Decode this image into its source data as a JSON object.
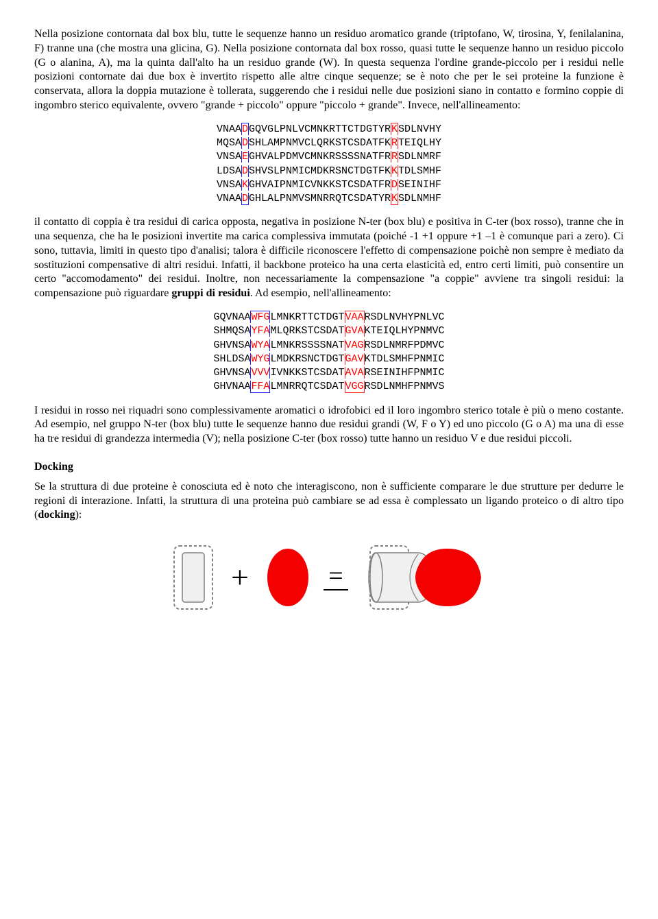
{
  "para1": "Nella posizione contornata dal box blu, tutte le sequenze hanno un residuo aromatico grande (triptofano, W, tirosina, Y, fenilalanina, F) tranne una (che mostra una glicina, G). Nella posizione contornata dal box rosso, quasi tutte le sequenze hanno un residuo piccolo (G o alanina, A), ma la quinta dall'alto ha un residuo grande (W). In questa sequenza l'ordine grande-piccolo per i residui nelle posizioni contornate dai due box è invertito rispetto alle altre cinque sequenze; se è noto che per le sei proteine la funzione è conservata, allora la doppia mutazione è tollerata, suggerendo che i residui nelle due posizioni siano in contatto e formino coppie di ingombro sterico equivalente, ovvero \"grande + piccolo\" oppure \"piccolo + grande\". Invece, nell'allineamento:",
  "alignment1": [
    {
      "pre": "VNAA",
      "b": "D",
      "mid": "GQVGLPNLVCMNKRTTCTDGTYR",
      "r": "K",
      "post": "SDLNVHY"
    },
    {
      "pre": "MQSA",
      "b": "D",
      "mid": "SHLAMPNMVCLQRKSTCSDATFK",
      "r": "R",
      "post": "TEIQLHY"
    },
    {
      "pre": "VNSA",
      "b": "E",
      "mid": "GHVALPDMVCMNKRSSSSNATFR",
      "r": "R",
      "post": "SDLNMRF"
    },
    {
      "pre": "LDSA",
      "b": "D",
      "mid": "SHVSLPNMICMDKRSNCTDGTFK",
      "r": "K",
      "post": "TDLSMHF"
    },
    {
      "pre": "VNSA",
      "b": "K",
      "mid": "GHVAIPNMICVNKKSTCSDATFR",
      "r": "D",
      "post": "SEINIHF"
    },
    {
      "pre": "VNAA",
      "b": "D",
      "mid": "GHLALPNMVSMNRRQTCSDATYR",
      "r": "K",
      "post": "SDLNMHF"
    }
  ],
  "para2a": "il contatto di coppia è tra residui di carica opposta, negativa in posizione N-ter (box blu) e positiva in C-ter (box rosso), tranne che in una sequenza, che ha le posizioni invertite ma carica complessiva immutata (poiché -1 +1 oppure +1 –1 è comunque pari a zero). Ci sono, tuttavia, limiti in questo tipo d'analisi; talora è difficile riconoscere l'effetto di compensazione poichè non sempre è mediato da sostituzioni compensative di altri residui. Infatti, il backbone proteico ha una certa elasticità ed, entro certi limiti, può consentire un certo \"accomodamento\" dei residui. Inoltre, non necessariamente la compensazione \"a coppie\" avviene tra singoli residui: la compensazione può riguardare ",
  "para2b": "gruppi di residui",
  "para2c": ". Ad esempio, nell'allineamento:",
  "alignment2": [
    {
      "pre": "GQVNAA",
      "b": "WFG",
      "mid": "LMNKRTTCTDGT",
      "r": "VAA",
      "post": "RSDLNVHYPNLVC"
    },
    {
      "pre": "SHMQSA",
      "b": "YFA",
      "mid": "MLQRKSTCSDAT",
      "r": "GVA",
      "post": "KTEIQLHYPNMVC"
    },
    {
      "pre": "GHVNSA",
      "b": "WYA",
      "mid": "LMNKRSSSSNAT",
      "r": "VAG",
      "post": "RSDLNMRFPDMVC"
    },
    {
      "pre": "SHLDSA",
      "b": "WYG",
      "mid": "LMDKRSNCTDGT",
      "r": "GAV",
      "post": "KTDLSMHFPNMIC"
    },
    {
      "pre": "GHVNSA",
      "b": "VVV",
      "mid": "IVNKKSTCSDAT",
      "r": "AVA",
      "post": "RSEINIHFPNMIC"
    },
    {
      "pre": "GHVNAA",
      "b": "FFA",
      "mid": "LMNRRQTCSDAT",
      "r": "VGG",
      "post": "RSDLNMHFPNMVS"
    }
  ],
  "para3": "I residui in rosso nei riquadri sono complessivamente aromatici o idrofobici ed il loro ingombro sterico totale è più o meno costante. Ad esempio, nel gruppo N-ter (box blu) tutte le sequenze hanno due residui grandi (W, F o Y) ed uno piccolo (G o A) ma una di esse ha tre residui di grandezza intermedia (V); nella posizione C-ter (box rosso) tutte hanno un residuo V e due residui piccoli.",
  "docking_title": "Docking",
  "para4a": "Se la struttura di due proteine è conosciuta ed è noto che interagiscono, non è sufficiente comparare le due strutture per dedurre le regioni di interazione. Infatti, la struttura di una proteina può cambiare se ad essa è complessato un ligando proteico o di altro tipo (",
  "para4b": "docking",
  "para4c": "):",
  "figure": {
    "colors": {
      "red": "#f50000",
      "gray_fill": "#f0f0f0",
      "gray_stroke": "#808080",
      "black": "#000000"
    },
    "plus": "+",
    "equals": "="
  }
}
